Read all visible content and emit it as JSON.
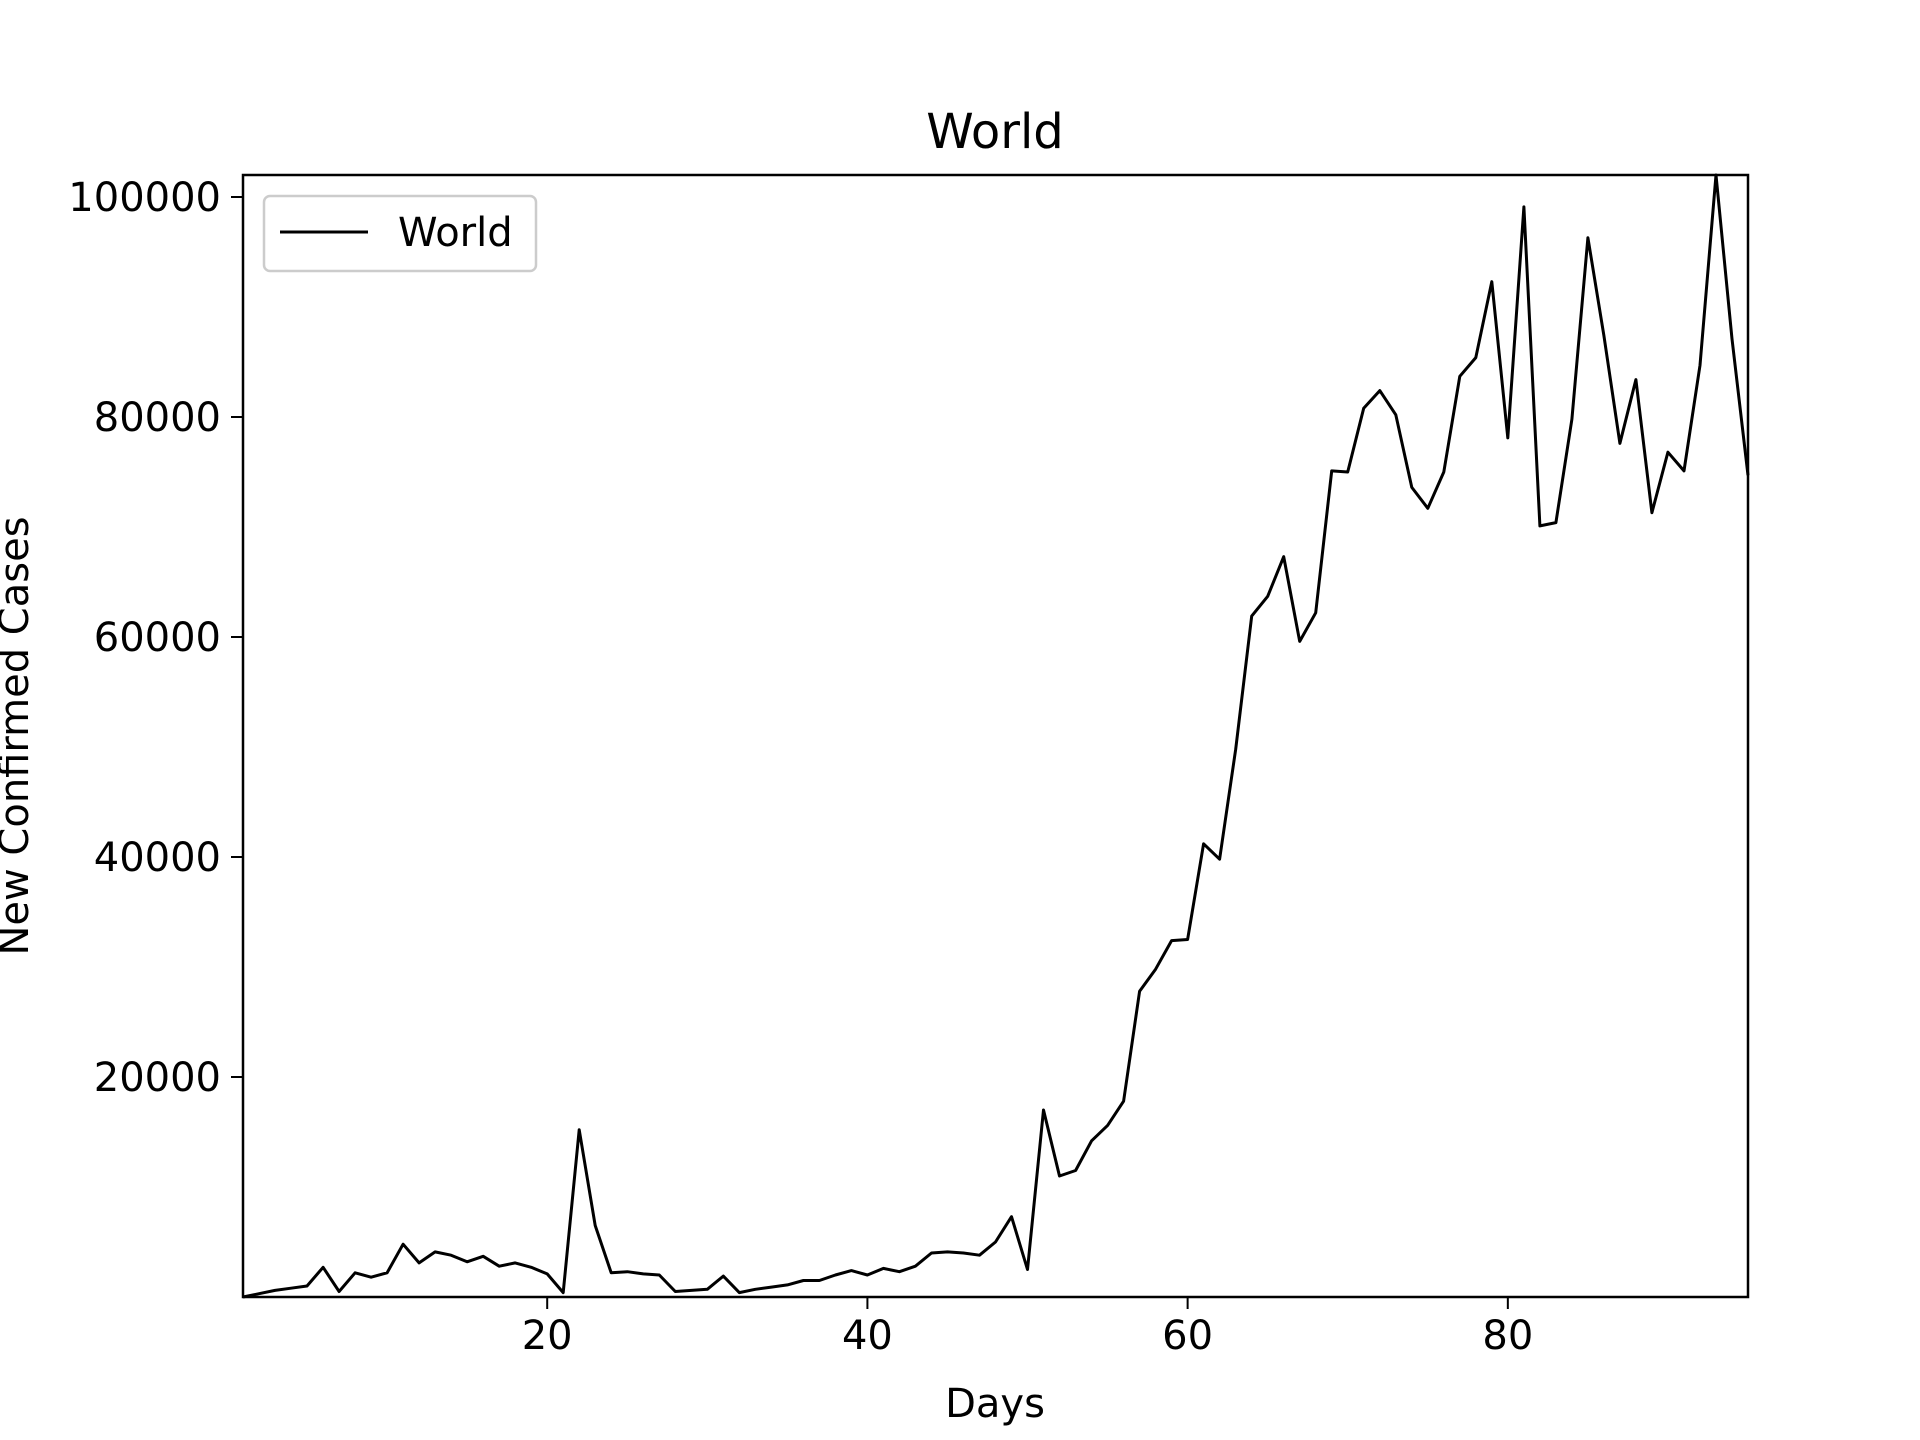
{
  "chart_data": {
    "type": "line",
    "title": "World",
    "xlabel": "Days",
    "ylabel": "New Confirmed Cases",
    "xlim": [
      1,
      95
    ],
    "ylim": [
      0,
      102000
    ],
    "xticks": [
      20,
      40,
      60,
      80
    ],
    "yticks": [
      20000,
      40000,
      60000,
      80000,
      100000
    ],
    "grid": false,
    "legend_position": "top-left",
    "series": [
      {
        "name": "World",
        "color": "#000000",
        "x": [
          1,
          2,
          3,
          4,
          5,
          6,
          7,
          8,
          9,
          10,
          11,
          12,
          13,
          14,
          15,
          16,
          17,
          18,
          19,
          20,
          21,
          22,
          23,
          24,
          25,
          26,
          27,
          28,
          29,
          30,
          31,
          32,
          33,
          34,
          35,
          36,
          37,
          38,
          39,
          40,
          41,
          42,
          43,
          44,
          45,
          46,
          47,
          48,
          49,
          50,
          51,
          52,
          53,
          54,
          55,
          56,
          57,
          58,
          59,
          60,
          61,
          62,
          63,
          64,
          65,
          66,
          67,
          68,
          69,
          70,
          71,
          72,
          73,
          74,
          75,
          76,
          77,
          78,
          79,
          80,
          81,
          82,
          83,
          84,
          85,
          86,
          87,
          88,
          89,
          90,
          91,
          92,
          93,
          94,
          95
        ],
        "y": [
          0,
          300,
          600,
          800,
          1000,
          2700,
          500,
          2200,
          1800,
          2200,
          4800,
          3100,
          4100,
          3800,
          3200,
          3700,
          2800,
          3100,
          2700,
          2100,
          400,
          15200,
          6500,
          2200,
          2300,
          2100,
          2000,
          500,
          600,
          700,
          1900,
          400,
          700,
          900,
          1100,
          1500,
          1500,
          2000,
          2400,
          2000,
          2600,
          2300,
          2800,
          4000,
          4100,
          4000,
          3800,
          5000,
          7300,
          2500,
          17000,
          11000,
          11500,
          14200,
          15600,
          17800,
          27800,
          29800,
          32400,
          32500,
          41200,
          39800,
          49800,
          61900,
          63700,
          67300,
          59600,
          62200,
          75100,
          75000,
          80800,
          82400,
          80200,
          73600,
          71700,
          75000,
          83700,
          85400,
          92300,
          78100,
          99100,
          70100,
          70400,
          79800,
          96300,
          87400,
          77600,
          83400,
          71300,
          76800,
          75100,
          84700,
          102000,
          87100,
          74700
        ]
      }
    ]
  }
}
